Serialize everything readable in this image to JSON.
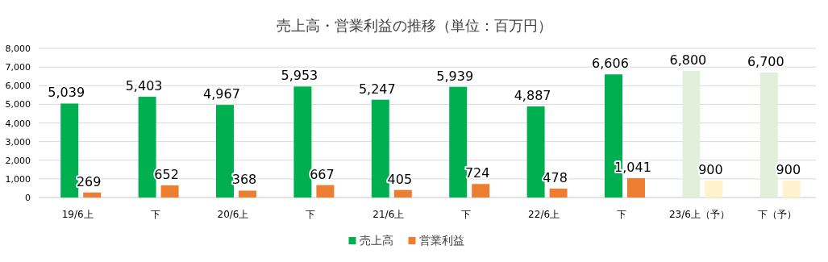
{
  "chart_data": {
    "type": "bar",
    "title": "売上高・営業利益の推移（単位：百万円）",
    "categories": [
      "19/6上",
      "下",
      "20/6上",
      "下",
      "21/6上",
      "下",
      "22/6上",
      "下",
      "23/6上（予）",
      "下（予）"
    ],
    "series": [
      {
        "name": "売上高",
        "color": "#00b050",
        "colors": [
          "#00b050",
          "#00b050",
          "#00b050",
          "#00b050",
          "#00b050",
          "#00b050",
          "#00b050",
          "#00b050",
          "#e2efda",
          "#e2efda"
        ],
        "values": [
          5039,
          5403,
          4967,
          5953,
          5247,
          5939,
          4887,
          6606,
          6800,
          6700
        ],
        "value_labels": [
          "5,039",
          "5,403",
          "4,967",
          "5,953",
          "5,247",
          "5,939",
          "4,887",
          "6,606",
          "6,800",
          "6,700"
        ]
      },
      {
        "name": "営業利益",
        "color": "#ed7d31",
        "colors": [
          "#ed7d31",
          "#ed7d31",
          "#ed7d31",
          "#ed7d31",
          "#ed7d31",
          "#ed7d31",
          "#ed7d31",
          "#ed7d31",
          "#fff2cc",
          "#fff2cc"
        ],
        "values": [
          269,
          652,
          368,
          667,
          405,
          724,
          478,
          1041,
          900,
          900
        ],
        "value_labels": [
          "269",
          "652",
          "368",
          "667",
          "405",
          "724",
          "478",
          "1,041",
          "900",
          "900"
        ]
      }
    ],
    "ylim": [
      0,
      8000
    ],
    "yticks": [
      {
        "value": 0,
        "label": "0"
      },
      {
        "value": 1000,
        "label": "1,000"
      },
      {
        "value": 2000,
        "label": "2,000"
      },
      {
        "value": 3000,
        "label": "3,000"
      },
      {
        "value": 4000,
        "label": "4,000"
      },
      {
        "value": 5000,
        "label": "5,000"
      },
      {
        "value": 6000,
        "label": "6,000"
      },
      {
        "value": 7000,
        "label": "7,000"
      },
      {
        "value": 8000,
        "label": "8,000"
      }
    ],
    "grid": "y",
    "legend": "bottom"
  }
}
